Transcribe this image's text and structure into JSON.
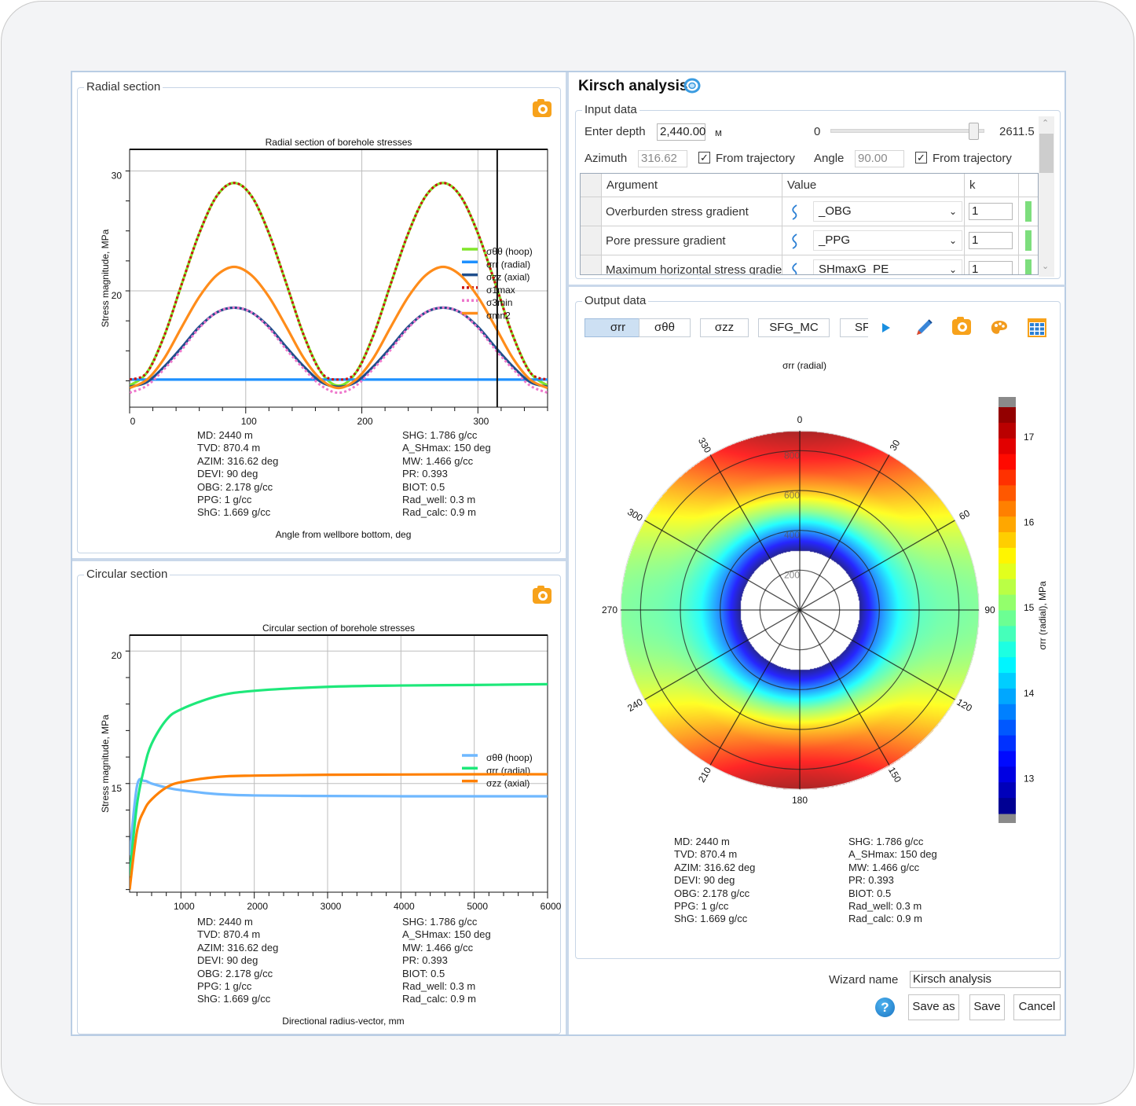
{
  "radial_section": {
    "group_label": "Radial section",
    "info_left": [
      "MD: 2440 m",
      "TVD: 870.4 m",
      "AZIM: 316.62 deg",
      "DEVI: 90 deg",
      "OBG: 2.178 g/cc",
      "PPG: 1 g/cc",
      "ShG: 1.669 g/cc"
    ],
    "info_right": [
      "SHG: 1.786 g/cc",
      "A_SHmax: 150 deg",
      "MW: 1.466 g/cc",
      "PR: 0.393",
      "BIOT: 0.5",
      "Rad_well: 0.3 m",
      "Rad_calc: 0.9 m"
    ]
  },
  "circular_section": {
    "group_label": "Circular section",
    "info_left": [
      "MD: 2440 m",
      "TVD: 870.4 m",
      "AZIM: 316.62 deg",
      "DEVI: 90 deg",
      "OBG: 2.178 g/cc",
      "PPG: 1 g/cc",
      "ShG: 1.669 g/cc"
    ],
    "info_right": [
      "SHG: 1.786 g/cc",
      "A_SHmax: 150 deg",
      "MW: 1.466 g/cc",
      "PR: 0.393",
      "BIOT: 0.5",
      "Rad_well: 0.3 m",
      "Rad_calc: 0.9 m"
    ]
  },
  "kirsch": {
    "title": "Kirsch analysis",
    "input": {
      "group_label": "Input data",
      "depth_label": "Enter depth",
      "depth_value": "2,440.00",
      "depth_unit": "м",
      "slider_min": "0",
      "slider_max": "2611.5",
      "slider_value": 2440,
      "azimuth_label": "Azimuth",
      "azimuth_value": "316.62",
      "from_trajectory_1": "From trajectory",
      "angle_label": "Angle",
      "angle_value": "90.00",
      "from_trajectory_2": "From trajectory",
      "columns": [
        "Argument",
        "Value",
        "k"
      ],
      "rows": [
        {
          "argument": "Overburden stress gradient",
          "value": "_OBG",
          "k": "1"
        },
        {
          "argument": "Pore pressure gradient",
          "value": "_PPG",
          "k": "1"
        },
        {
          "argument": "Maximum horizontal stress gradient",
          "value": "SHmaxG_PE",
          "k": "1"
        }
      ]
    },
    "output": {
      "group_label": "Output data",
      "tabs": [
        "σrr",
        "σθθ",
        "σzz",
        "SFG_MC",
        "SF"
      ],
      "selected_tab": "σrr",
      "info_left": [
        "MD: 2440 m",
        "TVD: 870.4 m",
        "AZIM: 316.62 deg",
        "DEVI: 90 deg",
        "OBG: 2.178 g/cc",
        "PPG: 1 g/cc",
        "ShG: 1.669 g/cc"
      ],
      "info_right": [
        "SHG: 1.786 g/cc",
        "A_SHmax: 150 deg",
        "MW: 1.466 g/cc",
        "PR: 0.393",
        "BIOT: 0.5",
        "Rad_well: 0.3 m",
        "Rad_calc: 0.9 m"
      ]
    },
    "wizard_name_label": "Wizard name",
    "wizard_name_value": "Kirsch analysis",
    "save_as_label": "Save as",
    "save_label": "Save",
    "cancel_label": "Cancel",
    "help_label": "?"
  },
  "colors": {
    "accent": "#cde0f3",
    "camera": "#f7a21b",
    "border": "#b9cde4"
  },
  "chart_data": [
    {
      "type": "line",
      "title": "Radial section of borehole stresses",
      "xlabel": "Angle from wellbore bottom, deg",
      "ylabel": "Stress magnitude, MPa",
      "xlim": [
        0,
        360
      ],
      "ylim": [
        10.3,
        31.8
      ],
      "xticks": [
        0,
        100,
        200,
        300
      ],
      "xtick_labels": [
        "0",
        "100",
        "200",
        "300"
      ],
      "yticks": [
        20,
        30
      ],
      "ytick_labels": [
        "20",
        "30"
      ],
      "x_minor_step": 20,
      "y_minor_step": 2.5,
      "cursor_x": 316.62,
      "legend": "right",
      "x": [
        0,
        15,
        30,
        45,
        60,
        75,
        90,
        105,
        120,
        135,
        150,
        165,
        180,
        195,
        210,
        225,
        240,
        255,
        270,
        285,
        300,
        315,
        330,
        345,
        360
      ],
      "series": [
        {
          "name": "σθθ (hoop)",
          "color": "#80e62a",
          "style": "solid",
          "values": [
            12.1,
            13.2,
            16.3,
            20.6,
            24.8,
            27.9,
            29.0,
            27.9,
            24.8,
            20.6,
            16.3,
            13.2,
            12.1,
            13.2,
            16.3,
            20.6,
            24.8,
            27.9,
            29.0,
            27.9,
            24.8,
            20.6,
            16.3,
            13.2,
            12.1
          ]
        },
        {
          "name": "σrr (radial)",
          "color": "#1e90ff",
          "style": "solid",
          "values": [
            12.6,
            12.6,
            12.6,
            12.6,
            12.6,
            12.6,
            12.6,
            12.6,
            12.6,
            12.6,
            12.6,
            12.6,
            12.6,
            12.6,
            12.6,
            12.6,
            12.6,
            12.6,
            12.6,
            12.6,
            12.6,
            12.6,
            12.6,
            12.6,
            12.6
          ]
        },
        {
          "name": "σzz (axial)",
          "color": "#1f4e8c",
          "style": "solid",
          "values": [
            12.0,
            12.4,
            13.7,
            15.3,
            17.0,
            18.2,
            18.6,
            18.2,
            17.0,
            15.3,
            13.7,
            12.4,
            12.0,
            12.4,
            13.7,
            15.3,
            17.0,
            18.2,
            18.6,
            18.2,
            17.0,
            15.3,
            13.7,
            12.4,
            12.0
          ]
        },
        {
          "name": "σ1max",
          "color": "#cc1111",
          "style": "dotted",
          "values": [
            12.6,
            13.2,
            16.3,
            20.6,
            24.8,
            27.9,
            29.0,
            27.9,
            24.8,
            20.6,
            16.3,
            13.2,
            12.6,
            13.2,
            16.3,
            20.6,
            24.8,
            27.9,
            29.0,
            27.9,
            24.8,
            20.6,
            16.3,
            13.2,
            12.6
          ]
        },
        {
          "name": "σ3min",
          "color": "#ee77cc",
          "style": "dotted",
          "values": [
            11.5,
            12.1,
            13.5,
            15.1,
            16.9,
            18.2,
            18.6,
            18.2,
            16.9,
            15.1,
            13.5,
            12.1,
            11.5,
            12.1,
            13.5,
            15.1,
            16.9,
            18.2,
            18.6,
            18.2,
            16.9,
            15.1,
            13.5,
            12.1,
            11.5
          ]
        },
        {
          "name": "σmn2",
          "color": "#ff8c1a",
          "style": "solid",
          "values": [
            11.9,
            12.6,
            14.4,
            17.0,
            19.5,
            21.3,
            22.0,
            21.3,
            19.5,
            17.0,
            14.4,
            12.6,
            11.9,
            12.6,
            14.4,
            17.0,
            19.5,
            21.3,
            22.0,
            21.3,
            19.5,
            17.0,
            14.4,
            12.6,
            11.9
          ]
        }
      ]
    },
    {
      "type": "line",
      "title": "Circular section of borehole stresses",
      "xlabel": "Directional radius-vector, mm",
      "ylabel": "Stress magnitude, MPa",
      "xlim": [
        300,
        6000
      ],
      "ylim": [
        10.9,
        20.6
      ],
      "xticks": [
        1000,
        2000,
        3000,
        4000,
        5000,
        6000
      ],
      "xtick_labels": [
        "1000",
        "2000",
        "3000",
        "4000",
        "5000",
        "6000"
      ],
      "yticks": [
        15,
        20
      ],
      "ytick_labels": [
        "15",
        "20"
      ],
      "x_minor_step": 200,
      "y_minor_step": 1,
      "legend": "right",
      "x": [
        300,
        400,
        500,
        600,
        800,
        1000,
        1500,
        2000,
        3000,
        4000,
        5000,
        6000
      ],
      "series": [
        {
          "name": "σθθ (hoop)",
          "color": "#6fb8ff",
          "style": "solid",
          "values": [
            12.3,
            14.9,
            15.1,
            15.0,
            14.85,
            14.75,
            14.6,
            14.55,
            14.53,
            14.52,
            14.52,
            14.52
          ]
        },
        {
          "name": "σrr (radial)",
          "color": "#1ee87a",
          "style": "solid",
          "values": [
            11.5,
            14.2,
            15.6,
            16.5,
            17.4,
            17.8,
            18.3,
            18.5,
            18.65,
            18.7,
            18.72,
            18.75
          ]
        },
        {
          "name": "σzz (axial)",
          "color": "#ff8000",
          "style": "solid",
          "values": [
            11.0,
            13.2,
            14.0,
            14.4,
            14.85,
            15.05,
            15.25,
            15.3,
            15.33,
            15.34,
            15.35,
            15.35
          ]
        }
      ]
    },
    {
      "type": "heatmap",
      "title": "σrr (radial)",
      "colorbar_label": "σrr (radial), MPa",
      "clim": [
        12.58,
        17.34
      ],
      "colorbar_ticks": [
        13,
        14,
        15,
        16,
        17
      ],
      "colorbar_tick_labels": [
        "13",
        "14",
        "15",
        "16",
        "17"
      ],
      "r_max_mm": 900,
      "well_radius_mm": 300,
      "radial_ticks": [
        200,
        400,
        600,
        800
      ],
      "radial_tick_labels": [
        "200",
        "400",
        "600",
        "800"
      ],
      "angle_ticks": [
        0,
        30,
        60,
        90,
        120,
        150,
        180,
        210,
        240,
        270,
        300,
        330
      ],
      "angle_tick_labels": [
        "0",
        "30",
        "60",
        "90",
        "120",
        "150",
        "180",
        "210",
        "240",
        "270",
        "300",
        "330"
      ],
      "profile_r_mm": [
        300,
        350,
        400,
        500,
        600,
        700,
        800,
        900
      ],
      "values_at_0deg": [
        12.6,
        13.2,
        13.8,
        15.0,
        15.9,
        16.5,
        16.9,
        17.2
      ],
      "values_at_90deg": [
        12.6,
        13.2,
        13.7,
        14.4,
        14.7,
        14.8,
        14.85,
        14.9
      ]
    }
  ]
}
